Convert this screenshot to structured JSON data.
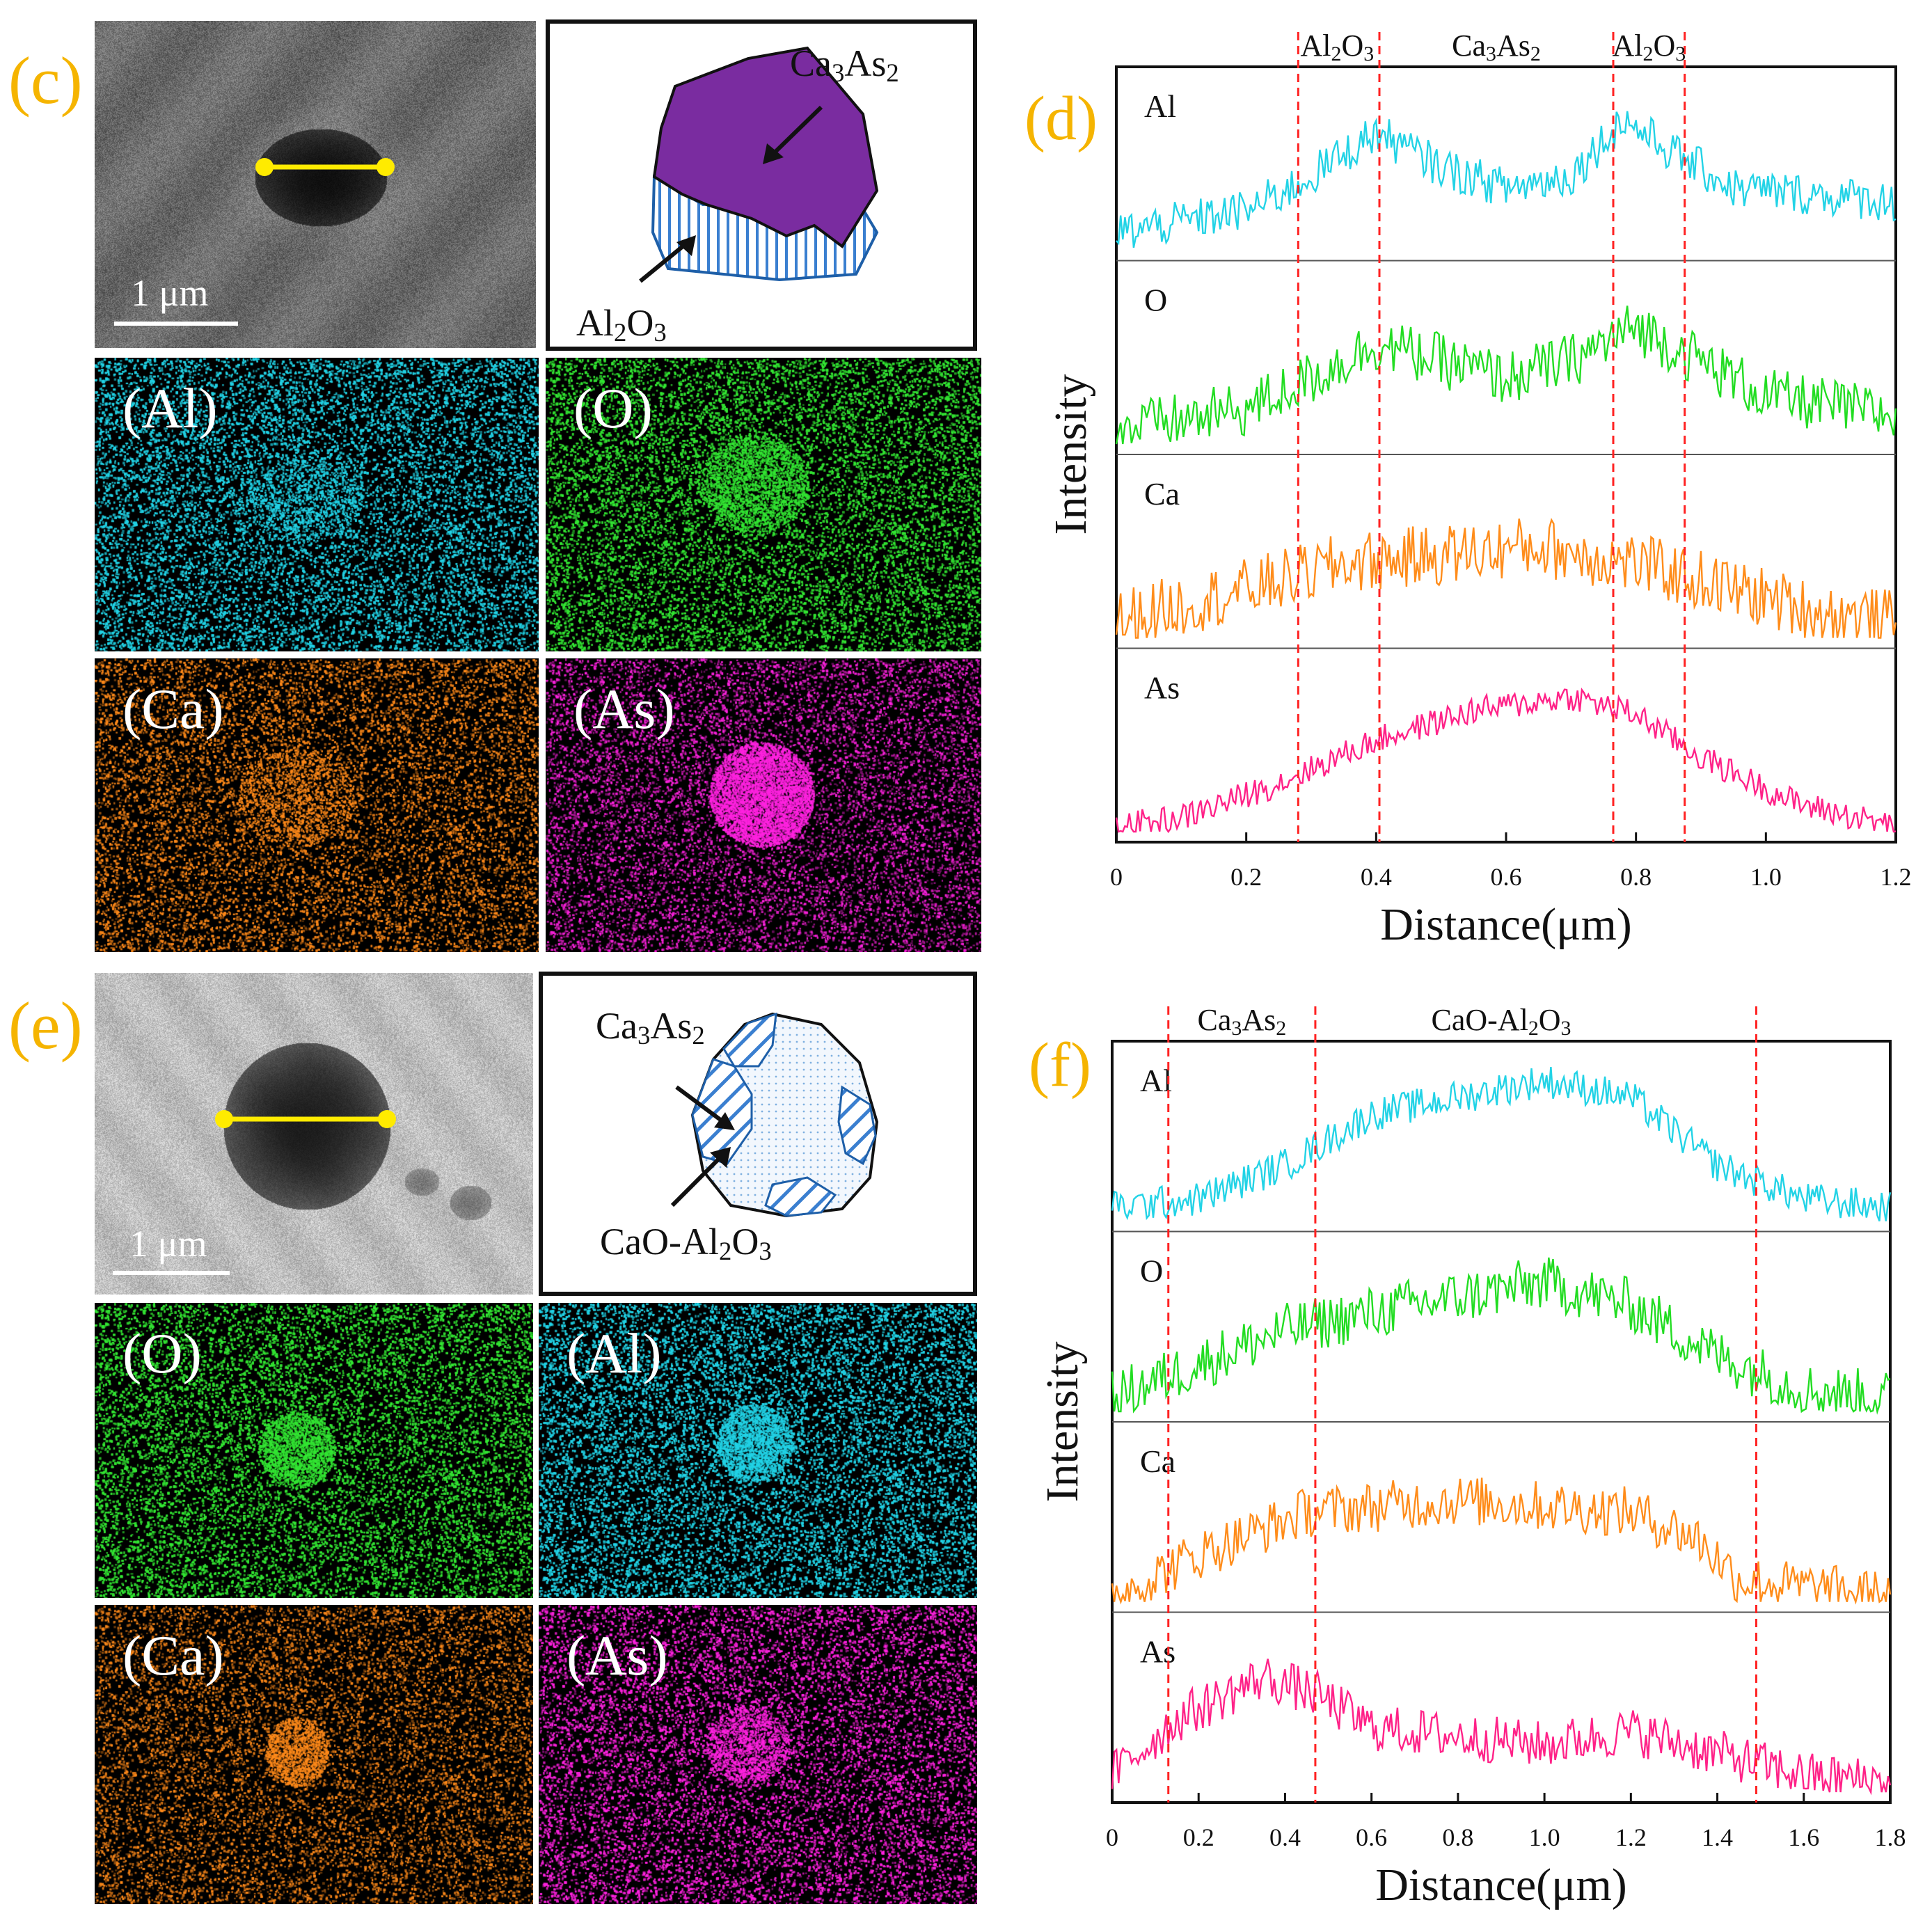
{
  "panels": {
    "c": {
      "letter": "(c)",
      "scale_label": "1 μm",
      "schematic": {
        "label_top": {
          "base": "Ca",
          "s1": "3",
          "mid": "As",
          "s2": "2"
        },
        "label_bottom": {
          "base": "Al",
          "s1": "2",
          "mid": "O",
          "s2": "3"
        }
      },
      "maps": [
        {
          "label": "(Al)",
          "color": "#22d3e6",
          "element": "Al"
        },
        {
          "label": "(O)",
          "color": "#33e633",
          "element": "O"
        },
        {
          "label": "(Ca)",
          "color": "#ff8a1a",
          "element": "Ca"
        },
        {
          "label": "(As)",
          "color": "#ff22e0",
          "element": "As"
        }
      ]
    },
    "e": {
      "letter": "(e)",
      "scale_label": "1 μm",
      "schematic": {
        "label_top": {
          "base": "Ca",
          "s1": "3",
          "mid": "As",
          "s2": "2"
        },
        "label_bottom": {
          "base": "CaO-Al",
          "s1": "2",
          "mid": "O",
          "s2": "3"
        }
      },
      "maps": [
        {
          "label": "(O)",
          "color": "#33e633",
          "element": "O"
        },
        {
          "label": "(Al)",
          "color": "#22d3e6",
          "element": "Al"
        },
        {
          "label": "(Ca)",
          "color": "#ff8a1a",
          "element": "Ca"
        },
        {
          "label": "(As)",
          "color": "#ff22e0",
          "element": "As"
        }
      ]
    }
  },
  "colors": {
    "Al": "#22d3e6",
    "O": "#22dd22",
    "Ca": "#ff8c1a",
    "As": "#ff2288",
    "panel_letter": "#f5b400",
    "divider": "#ff2222",
    "line_scan": "#ffeb00"
  },
  "chart_data": [
    {
      "id": "d",
      "letter": "(d)",
      "type": "line",
      "xlabel": "Distance(μm)",
      "ylabel": "Intensity",
      "xlim": [
        0,
        1.2
      ],
      "xticks": [
        0,
        0.2,
        0.4,
        0.6,
        0.8,
        1.0,
        1.2
      ],
      "xtick_labels": [
        "0",
        "0.2",
        "0.4",
        "0.6",
        "0.8",
        "1.0",
        "1.2"
      ],
      "dividers": [
        0.28,
        0.405,
        0.765,
        0.875
      ],
      "regions": [
        {
          "base": "Al",
          "s1": "2",
          "mid": "O",
          "s2": "3",
          "x": 0.34
        },
        {
          "base": "Ca",
          "s1": "3",
          "mid": "As",
          "s2": "2",
          "x": 0.585
        },
        {
          "base": "Al",
          "s1": "2",
          "mid": "O",
          "s2": "3",
          "x": 0.82
        }
      ],
      "series": [
        {
          "name": "Al",
          "profile": [
            [
              0,
              0.12
            ],
            [
              0.2,
              0.25
            ],
            [
              0.28,
              0.4
            ],
            [
              0.4,
              0.7
            ],
            [
              0.5,
              0.5
            ],
            [
              0.6,
              0.38
            ],
            [
              0.7,
              0.45
            ],
            [
              0.78,
              0.78
            ],
            [
              0.85,
              0.6
            ],
            [
              0.95,
              0.38
            ],
            [
              1.2,
              0.3
            ]
          ],
          "noise": 0.12
        },
        {
          "name": "O",
          "profile": [
            [
              0,
              0.1
            ],
            [
              0.2,
              0.22
            ],
            [
              0.3,
              0.4
            ],
            [
              0.4,
              0.6
            ],
            [
              0.5,
              0.5
            ],
            [
              0.6,
              0.4
            ],
            [
              0.7,
              0.5
            ],
            [
              0.8,
              0.7
            ],
            [
              0.9,
              0.5
            ],
            [
              1.0,
              0.3
            ],
            [
              1.2,
              0.18
            ]
          ],
          "noise": 0.16
        },
        {
          "name": "Ca",
          "profile": [
            [
              0,
              0.12
            ],
            [
              0.2,
              0.3
            ],
            [
              0.35,
              0.45
            ],
            [
              0.5,
              0.5
            ],
            [
              0.65,
              0.55
            ],
            [
              0.8,
              0.45
            ],
            [
              0.95,
              0.3
            ],
            [
              1.1,
              0.15
            ],
            [
              1.2,
              0.12
            ]
          ],
          "noise": 0.18
        },
        {
          "name": "As",
          "profile": [
            [
              0,
              0.05
            ],
            [
              0.1,
              0.1
            ],
            [
              0.25,
              0.3
            ],
            [
              0.4,
              0.55
            ],
            [
              0.55,
              0.72
            ],
            [
              0.7,
              0.8
            ],
            [
              0.8,
              0.7
            ],
            [
              0.9,
              0.45
            ],
            [
              1.05,
              0.18
            ],
            [
              1.2,
              0.05
            ]
          ],
          "noise": 0.08
        }
      ]
    },
    {
      "id": "f",
      "letter": "(f)",
      "type": "line",
      "xlabel": "Distance(μm)",
      "ylabel": "Intensity",
      "xlim": [
        0,
        1.8
      ],
      "xticks": [
        0,
        0.2,
        0.4,
        0.6,
        0.8,
        1.0,
        1.2,
        1.4,
        1.6,
        1.8
      ],
      "xtick_labels": [
        "0",
        "0.2",
        "0.4",
        "0.6",
        "0.8",
        "1.0",
        "1.2",
        "1.4",
        "1.6",
        "1.8"
      ],
      "dividers": [
        0.13,
        0.47,
        1.49
      ],
      "regions": [
        {
          "base": "Ca",
          "s1": "3",
          "mid": "As",
          "s2": "2",
          "x": 0.3
        },
        {
          "base": "CaO-Al",
          "s1": "2",
          "mid": "O",
          "s2": "3",
          "x": 0.9
        }
      ],
      "series": [
        {
          "name": "Al",
          "profile": [
            [
              0,
              0.1
            ],
            [
              0.2,
              0.15
            ],
            [
              0.4,
              0.35
            ],
            [
              0.6,
              0.65
            ],
            [
              1.0,
              0.85
            ],
            [
              1.2,
              0.75
            ],
            [
              1.4,
              0.35
            ],
            [
              1.6,
              0.15
            ],
            [
              1.8,
              0.1
            ]
          ],
          "noise": 0.1
        },
        {
          "name": "O",
          "profile": [
            [
              0,
              0.1
            ],
            [
              0.2,
              0.3
            ],
            [
              0.4,
              0.5
            ],
            [
              0.7,
              0.65
            ],
            [
              1.0,
              0.78
            ],
            [
              1.2,
              0.65
            ],
            [
              1.4,
              0.35
            ],
            [
              1.6,
              0.15
            ],
            [
              1.8,
              0.1
            ]
          ],
          "noise": 0.16
        },
        {
          "name": "Ca",
          "profile": [
            [
              0,
              0.05
            ],
            [
              0.2,
              0.3
            ],
            [
              0.45,
              0.55
            ],
            [
              0.8,
              0.62
            ],
            [
              1.2,
              0.55
            ],
            [
              1.35,
              0.4
            ],
            [
              1.45,
              0.15
            ],
            [
              1.8,
              0.05
            ]
          ],
          "noise": 0.15
        },
        {
          "name": "As",
          "profile": [
            [
              0,
              0.12
            ],
            [
              0.15,
              0.45
            ],
            [
              0.35,
              0.7
            ],
            [
              0.47,
              0.6
            ],
            [
              0.6,
              0.4
            ],
            [
              1.0,
              0.3
            ],
            [
              1.2,
              0.38
            ],
            [
              1.4,
              0.25
            ],
            [
              1.6,
              0.12
            ],
            [
              1.8,
              0.08
            ]
          ],
          "noise": 0.14
        }
      ]
    }
  ]
}
